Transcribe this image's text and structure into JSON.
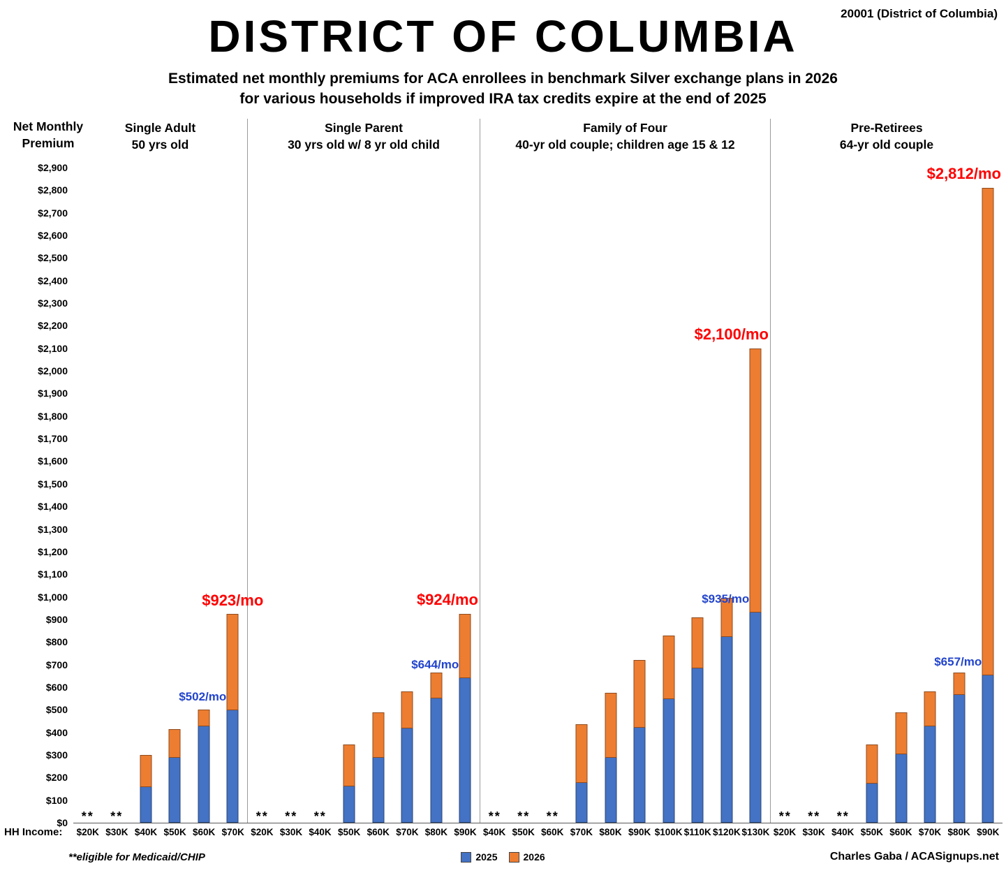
{
  "meta": {
    "zip_label": "20001 (District of Columbia)",
    "hh_income_label": "HH Income:",
    "footnote": "**eligible for Medicaid/CHIP",
    "credit": "Charles Gaba / ACASignups.net",
    "medicaid_marker": "**"
  },
  "legend": [
    {
      "label": "2025",
      "color": "#4472C4"
    },
    {
      "label": "2026",
      "color": "#ED7D31"
    }
  ],
  "chart_data": {
    "type": "bar",
    "stacked": true,
    "title": "DISTRICT OF COLUMBIA",
    "subtitle_line1": "Estimated net monthly premiums for ACA enrollees in benchmark Silver exchange plans in 2026",
    "subtitle_line2": "for various households if improved IRA tax credits expire at the end of 2025",
    "ylabel_line1": "Net Monthly",
    "ylabel_line2": "Premium",
    "ylim": [
      0,
      2900
    ],
    "y_tick_step": 100,
    "y_tick_prefix": "$",
    "series_names": [
      "2025",
      "2026"
    ],
    "grid": false,
    "legend_position": "bottom-center",
    "medicaid_note": "** = eligible for Medicaid/CHIP (no premium shown)",
    "groups": [
      {
        "title_line1": "Single Adult",
        "title_line2": "50 yrs old",
        "bars": [
          {
            "income": "$20K",
            "v2025": null,
            "v2026": null,
            "medicaid": true
          },
          {
            "income": "$30K",
            "v2025": null,
            "v2026": null,
            "medicaid": true
          },
          {
            "income": "$40K",
            "v2025": 160,
            "v2026": 300
          },
          {
            "income": "$50K",
            "v2025": 290,
            "v2026": 415
          },
          {
            "income": "$60K",
            "v2025": 430,
            "v2026": 500
          },
          {
            "income": "$70K",
            "v2025": 502,
            "v2026": 923,
            "label_2025": "$502/mo",
            "label_2026": "$923/mo",
            "label_align": "center"
          }
        ]
      },
      {
        "title_line1": "Single Parent",
        "title_line2": "30 yrs old w/ 8 yr old child",
        "bars": [
          {
            "income": "$20K",
            "v2025": null,
            "v2026": null,
            "medicaid": true
          },
          {
            "income": "$30K",
            "v2025": null,
            "v2026": null,
            "medicaid": true
          },
          {
            "income": "$40K",
            "v2025": null,
            "v2026": null,
            "medicaid": true
          },
          {
            "income": "$50K",
            "v2025": 165,
            "v2026": 345
          },
          {
            "income": "$60K",
            "v2025": 290,
            "v2026": 490
          },
          {
            "income": "$70K",
            "v2025": 420,
            "v2026": 580
          },
          {
            "income": "$80K",
            "v2025": 555,
            "v2026": 665
          },
          {
            "income": "$90K",
            "v2025": 644,
            "v2026": 924,
            "label_2025": "$644/mo",
            "label_2026": "$924/mo",
            "label_align": "right"
          }
        ]
      },
      {
        "title_line1": "Family of Four",
        "title_line2": "40-yr old couple; children age 15 & 12",
        "bars": [
          {
            "income": "$40K",
            "v2025": null,
            "v2026": null,
            "medicaid": true
          },
          {
            "income": "$50K",
            "v2025": null,
            "v2026": null,
            "medicaid": true
          },
          {
            "income": "$60K",
            "v2025": null,
            "v2026": null,
            "medicaid": true
          },
          {
            "income": "$70K",
            "v2025": 180,
            "v2026": 435
          },
          {
            "income": "$80K",
            "v2025": 290,
            "v2026": 575
          },
          {
            "income": "$90K",
            "v2025": 425,
            "v2026": 720
          },
          {
            "income": "$100K",
            "v2025": 550,
            "v2026": 830
          },
          {
            "income": "$110K",
            "v2025": 685,
            "v2026": 910
          },
          {
            "income": "$120K",
            "v2025": 825,
            "v2026": 995
          },
          {
            "income": "$130K",
            "v2025": 935,
            "v2026": 2100,
            "label_2025": "$935/mo",
            "label_2026": "$2,100/mo",
            "label_align": "right"
          }
        ]
      },
      {
        "title_line1": "Pre-Retirees",
        "title_line2": "64-yr old couple",
        "bars": [
          {
            "income": "$20K",
            "v2025": null,
            "v2026": null,
            "medicaid": true
          },
          {
            "income": "$30K",
            "v2025": null,
            "v2026": null,
            "medicaid": true
          },
          {
            "income": "$40K",
            "v2025": null,
            "v2026": null,
            "medicaid": true
          },
          {
            "income": "$50K",
            "v2025": 175,
            "v2026": 345
          },
          {
            "income": "$60K",
            "v2025": 305,
            "v2026": 490
          },
          {
            "income": "$70K",
            "v2025": 430,
            "v2026": 580
          },
          {
            "income": "$80K",
            "v2025": 570,
            "v2026": 665
          },
          {
            "income": "$90K",
            "v2025": 657,
            "v2026": 2812,
            "label_2025": "$657/mo",
            "label_2026": "$2,812/mo",
            "label_align": "right"
          }
        ]
      }
    ]
  }
}
